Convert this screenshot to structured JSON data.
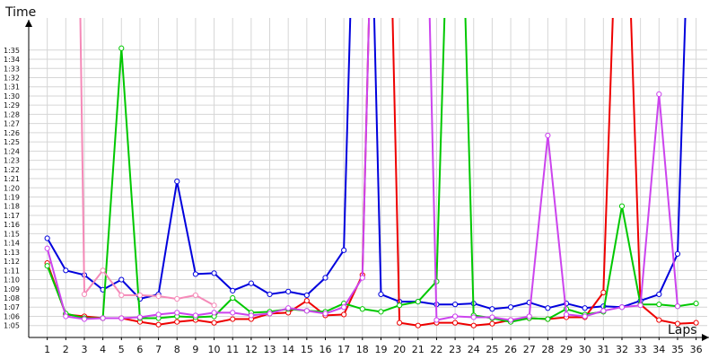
{
  "chart_data": {
    "type": "line",
    "title": "",
    "ylabel": "Time",
    "xlabel": "Laps",
    "x": [
      1,
      2,
      3,
      4,
      5,
      6,
      7,
      8,
      9,
      10,
      11,
      12,
      13,
      14,
      15,
      16,
      17,
      18,
      19,
      20,
      21,
      22,
      23,
      24,
      25,
      26,
      27,
      28,
      29,
      30,
      31,
      32,
      33,
      34,
      35,
      36
    ],
    "xlim": [
      0,
      36.6
    ],
    "ylim": [
      63.7,
      98.5
    ],
    "yticks": [
      {
        "v": 65,
        "label": "1:05"
      },
      {
        "v": 66,
        "label": "1:06"
      },
      {
        "v": 67,
        "label": "1:07"
      },
      {
        "v": 68,
        "label": "1:08"
      },
      {
        "v": 69,
        "label": "1:09"
      },
      {
        "v": 70,
        "label": "1:10"
      },
      {
        "v": 71,
        "label": "1:11"
      },
      {
        "v": 72,
        "label": "1:12"
      },
      {
        "v": 73,
        "label": "1:13"
      },
      {
        "v": 74,
        "label": "1:14"
      },
      {
        "v": 75,
        "label": "1:15"
      },
      {
        "v": 76,
        "label": "1:16"
      },
      {
        "v": 77,
        "label": "1:17"
      },
      {
        "v": 78,
        "label": "1:18"
      },
      {
        "v": 79,
        "label": "1:19"
      },
      {
        "v": 80,
        "label": "1:20"
      },
      {
        "v": 81,
        "label": "1:21"
      },
      {
        "v": 82,
        "label": "1:22"
      },
      {
        "v": 83,
        "label": "1:23"
      },
      {
        "v": 84,
        "label": "1:24"
      },
      {
        "v": 85,
        "label": "1:25"
      },
      {
        "v": 86,
        "label": "1:26"
      },
      {
        "v": 87,
        "label": "1:27"
      },
      {
        "v": 88,
        "label": "1:28"
      },
      {
        "v": 89,
        "label": "1:29"
      },
      {
        "v": 90,
        "label": "1:30"
      },
      {
        "v": 91,
        "label": "1:31"
      },
      {
        "v": 92,
        "label": "1:32"
      },
      {
        "v": 93,
        "label": "1:33"
      },
      {
        "v": 94,
        "label": "1:34"
      },
      {
        "v": 95,
        "label": "1:35"
      }
    ],
    "grid": true,
    "legend": "none",
    "series": [
      {
        "color": "#0000dd",
        "points": [
          {
            "x": 1,
            "y": 74.5
          },
          {
            "x": 2,
            "y": 71
          },
          {
            "x": 3,
            "y": 70.5
          },
          {
            "x": 4,
            "y": 68.9
          },
          {
            "x": 5,
            "y": 70
          },
          {
            "x": 6,
            "y": 67.9
          },
          {
            "x": 7,
            "y": 68.4
          },
          {
            "x": 8,
            "y": 80.7
          },
          {
            "x": 9,
            "y": 70.6
          },
          {
            "x": 10,
            "y": 70.7
          },
          {
            "x": 11,
            "y": 68.8
          },
          {
            "x": 12,
            "y": 69.6
          },
          {
            "x": 13,
            "y": 68.4
          },
          {
            "x": 14,
            "y": 68.7
          },
          {
            "x": 15,
            "y": 68.3
          },
          {
            "x": 16,
            "y": 70.2
          },
          {
            "x": 17,
            "y": 73.2
          },
          {
            "x": 17.5,
            "y": 110,
            "marker": false
          },
          {
            "x": 18.5,
            "y": 110,
            "marker": false
          },
          {
            "x": 19,
            "y": 68.4
          },
          {
            "x": 20,
            "y": 67.6
          },
          {
            "x": 21,
            "y": 67.6
          },
          {
            "x": 22,
            "y": 67.3
          },
          {
            "x": 23,
            "y": 67.3
          },
          {
            "x": 24,
            "y": 67.4
          },
          {
            "x": 25,
            "y": 66.8
          },
          {
            "x": 26,
            "y": 67
          },
          {
            "x": 27,
            "y": 67.5
          },
          {
            "x": 28,
            "y": 66.9
          },
          {
            "x": 29,
            "y": 67.4
          },
          {
            "x": 30,
            "y": 66.9
          },
          {
            "x": 31,
            "y": 67.1
          },
          {
            "x": 32,
            "y": 67
          },
          {
            "x": 33,
            "y": 67.7
          },
          {
            "x": 34,
            "y": 68.4
          },
          {
            "x": 35,
            "y": 72.8
          },
          {
            "x": 35.6,
            "y": 110,
            "marker": false
          }
        ]
      },
      {
        "color": "#ee0000",
        "points": [
          {
            "x": 1,
            "y": 71.8
          },
          {
            "x": 2,
            "y": 66.2
          },
          {
            "x": 3,
            "y": 66
          },
          {
            "x": 4,
            "y": 65.8
          },
          {
            "x": 5,
            "y": 65.8
          },
          {
            "x": 6,
            "y": 65.4
          },
          {
            "x": 7,
            "y": 65.1
          },
          {
            "x": 8,
            "y": 65.4
          },
          {
            "x": 9,
            "y": 65.6
          },
          {
            "x": 10,
            "y": 65.3
          },
          {
            "x": 11,
            "y": 65.7
          },
          {
            "x": 12,
            "y": 65.7
          },
          {
            "x": 13,
            "y": 66.3
          },
          {
            "x": 14,
            "y": 66.4
          },
          {
            "x": 15,
            "y": 67.7
          },
          {
            "x": 16,
            "y": 66.1
          },
          {
            "x": 17,
            "y": 66.2
          },
          {
            "x": 18,
            "y": 70.5
          },
          {
            "x": 18.5,
            "y": 110,
            "marker": false
          },
          {
            "x": 19.5,
            "y": 110,
            "marker": false
          },
          {
            "x": 20,
            "y": 65.3
          },
          {
            "x": 21,
            "y": 65
          },
          {
            "x": 22,
            "y": 65.3
          },
          {
            "x": 23,
            "y": 65.3
          },
          {
            "x": 24,
            "y": 65
          },
          {
            "x": 25,
            "y": 65.2
          },
          {
            "x": 26,
            "y": 65.6
          },
          {
            "x": 27,
            "y": 65.8
          },
          {
            "x": 28,
            "y": 65.7
          },
          {
            "x": 29,
            "y": 65.9
          },
          {
            "x": 30,
            "y": 65.9
          },
          {
            "x": 31,
            "y": 68.6
          },
          {
            "x": 31.7,
            "y": 110,
            "marker": false
          },
          {
            "x": 32.3,
            "y": 110,
            "marker": false
          },
          {
            "x": 33,
            "y": 67.3
          },
          {
            "x": 34,
            "y": 65.6
          },
          {
            "x": 35,
            "y": 65.2
          },
          {
            "x": 36,
            "y": 65.3
          }
        ]
      },
      {
        "color": "#00c800",
        "points": [
          {
            "x": 1,
            "y": 71.5
          },
          {
            "x": 2,
            "y": 66.3
          },
          {
            "x": 3,
            "y": 65.8
          },
          {
            "x": 4,
            "y": 65.8
          },
          {
            "x": 5,
            "y": 95.2
          },
          {
            "x": 6,
            "y": 65.8
          },
          {
            "x": 7,
            "y": 65.8
          },
          {
            "x": 8,
            "y": 66
          },
          {
            "x": 9,
            "y": 65.9
          },
          {
            "x": 10,
            "y": 66
          },
          {
            "x": 11,
            "y": 68
          },
          {
            "x": 12,
            "y": 66.4
          },
          {
            "x": 13,
            "y": 66.5
          },
          {
            "x": 14,
            "y": 66.8
          },
          {
            "x": 15,
            "y": 66.6
          },
          {
            "x": 16,
            "y": 66.5
          },
          {
            "x": 17,
            "y": 67.4
          },
          {
            "x": 18,
            "y": 66.8
          },
          {
            "x": 19,
            "y": 66.5
          },
          {
            "x": 20,
            "y": 67.2
          },
          {
            "x": 21,
            "y": 67.6
          },
          {
            "x": 22,
            "y": 69.8
          },
          {
            "x": 22.6,
            "y": 110,
            "marker": false
          },
          {
            "x": 23.4,
            "y": 110,
            "marker": false
          },
          {
            "x": 24,
            "y": 66.1
          },
          {
            "x": 25,
            "y": 65.8
          },
          {
            "x": 26,
            "y": 65.4
          },
          {
            "x": 27,
            "y": 65.8
          },
          {
            "x": 28,
            "y": 65.7
          },
          {
            "x": 29,
            "y": 66.8
          },
          {
            "x": 30,
            "y": 66.2
          },
          {
            "x": 31,
            "y": 66.5
          },
          {
            "x": 32,
            "y": 78
          },
          {
            "x": 33,
            "y": 67.3
          },
          {
            "x": 34,
            "y": 67.3
          },
          {
            "x": 35,
            "y": 67.1
          },
          {
            "x": 36,
            "y": 67.4
          }
        ]
      },
      {
        "color": "#cc44ee",
        "points": [
          {
            "x": 1,
            "y": 73.4
          },
          {
            "x": 2,
            "y": 66
          },
          {
            "x": 3,
            "y": 65.7
          },
          {
            "x": 4,
            "y": 65.8
          },
          {
            "x": 5,
            "y": 65.8
          },
          {
            "x": 6,
            "y": 65.9
          },
          {
            "x": 7,
            "y": 66.2
          },
          {
            "x": 8,
            "y": 66.4
          },
          {
            "x": 9,
            "y": 66.1
          },
          {
            "x": 10,
            "y": 66.4
          },
          {
            "x": 11,
            "y": 66.4
          },
          {
            "x": 12,
            "y": 66.1
          },
          {
            "x": 13,
            "y": 66.3
          },
          {
            "x": 14,
            "y": 66.9
          },
          {
            "x": 15,
            "y": 66.6
          },
          {
            "x": 16,
            "y": 66.3
          },
          {
            "x": 17,
            "y": 67
          },
          {
            "x": 18,
            "y": 70.2
          },
          {
            "x": 18.5,
            "y": 110,
            "marker": false
          },
          {
            "x": 21.5,
            "y": 110,
            "marker": false
          },
          {
            "x": 22,
            "y": 65.6
          },
          {
            "x": 23,
            "y": 66
          },
          {
            "x": 24,
            "y": 65.9
          },
          {
            "x": 25,
            "y": 65.9
          },
          {
            "x": 26,
            "y": 65.6
          },
          {
            "x": 27,
            "y": 66
          },
          {
            "x": 28,
            "y": 85.7
          },
          {
            "x": 29,
            "y": 66.2
          },
          {
            "x": 30,
            "y": 66
          },
          {
            "x": 31,
            "y": 66.6
          },
          {
            "x": 32,
            "y": 67
          },
          {
            "x": 33,
            "y": 67.2
          },
          {
            "x": 34,
            "y": 90.2
          },
          {
            "x": 35,
            "y": 67.1
          }
        ]
      },
      {
        "color": "#f58ab8",
        "points": [
          {
            "x": 2.7,
            "y": 110,
            "marker": false
          },
          {
            "x": 3,
            "y": 68.4
          },
          {
            "x": 4,
            "y": 71
          },
          {
            "x": 5,
            "y": 68.3
          },
          {
            "x": 6,
            "y": 68.3
          },
          {
            "x": 7,
            "y": 68.2
          },
          {
            "x": 8,
            "y": 67.9
          },
          {
            "x": 9,
            "y": 68.3
          },
          {
            "x": 10,
            "y": 67.2
          }
        ]
      }
    ]
  }
}
